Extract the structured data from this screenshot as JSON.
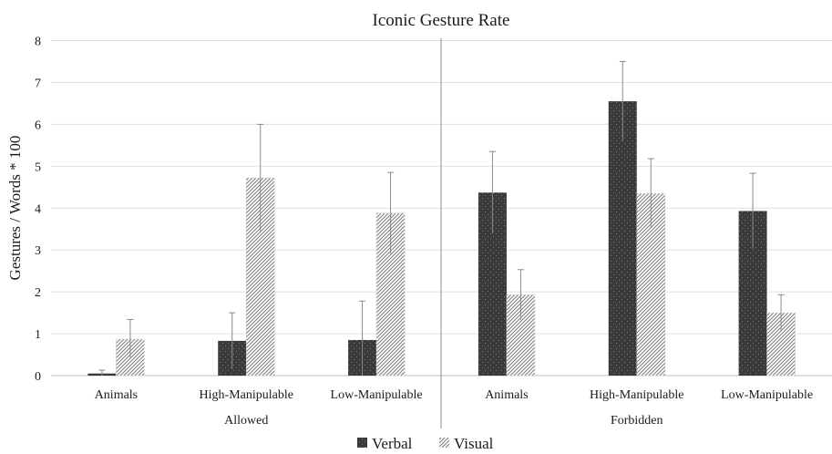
{
  "chart_data": {
    "type": "bar",
    "title": "Iconic Gesture Rate",
    "ylabel": "Gestures / Words * 100",
    "ylim": [
      0,
      8
    ],
    "yticks": [
      0,
      1,
      2,
      3,
      4,
      5,
      6,
      7,
      8
    ],
    "grid": true,
    "legend_position": "bottom",
    "groups": [
      {
        "label": "Allowed",
        "categories": [
          "Animals",
          "High-Manipulable",
          "Low-Manipulable"
        ]
      },
      {
        "label": "Forbidden",
        "categories": [
          "Animals",
          "High-Manipulable",
          "Low-Manipulable"
        ]
      }
    ],
    "series": [
      {
        "name": "Verbal",
        "color": "#3a3a3a",
        "pattern": "dots",
        "values": [
          0.05,
          0.83,
          0.85,
          4.37,
          6.55,
          3.93
        ],
        "error": [
          0.08,
          0.67,
          0.93,
          0.98,
          0.95,
          0.9
        ]
      },
      {
        "name": "Visual",
        "color": "#ffffff",
        "pattern": "diagonal-hatch",
        "values": [
          0.87,
          4.72,
          3.88,
          1.93,
          4.35,
          1.5
        ],
        "error": [
          0.47,
          1.28,
          0.97,
          0.6,
          0.83,
          0.43
        ]
      }
    ]
  }
}
